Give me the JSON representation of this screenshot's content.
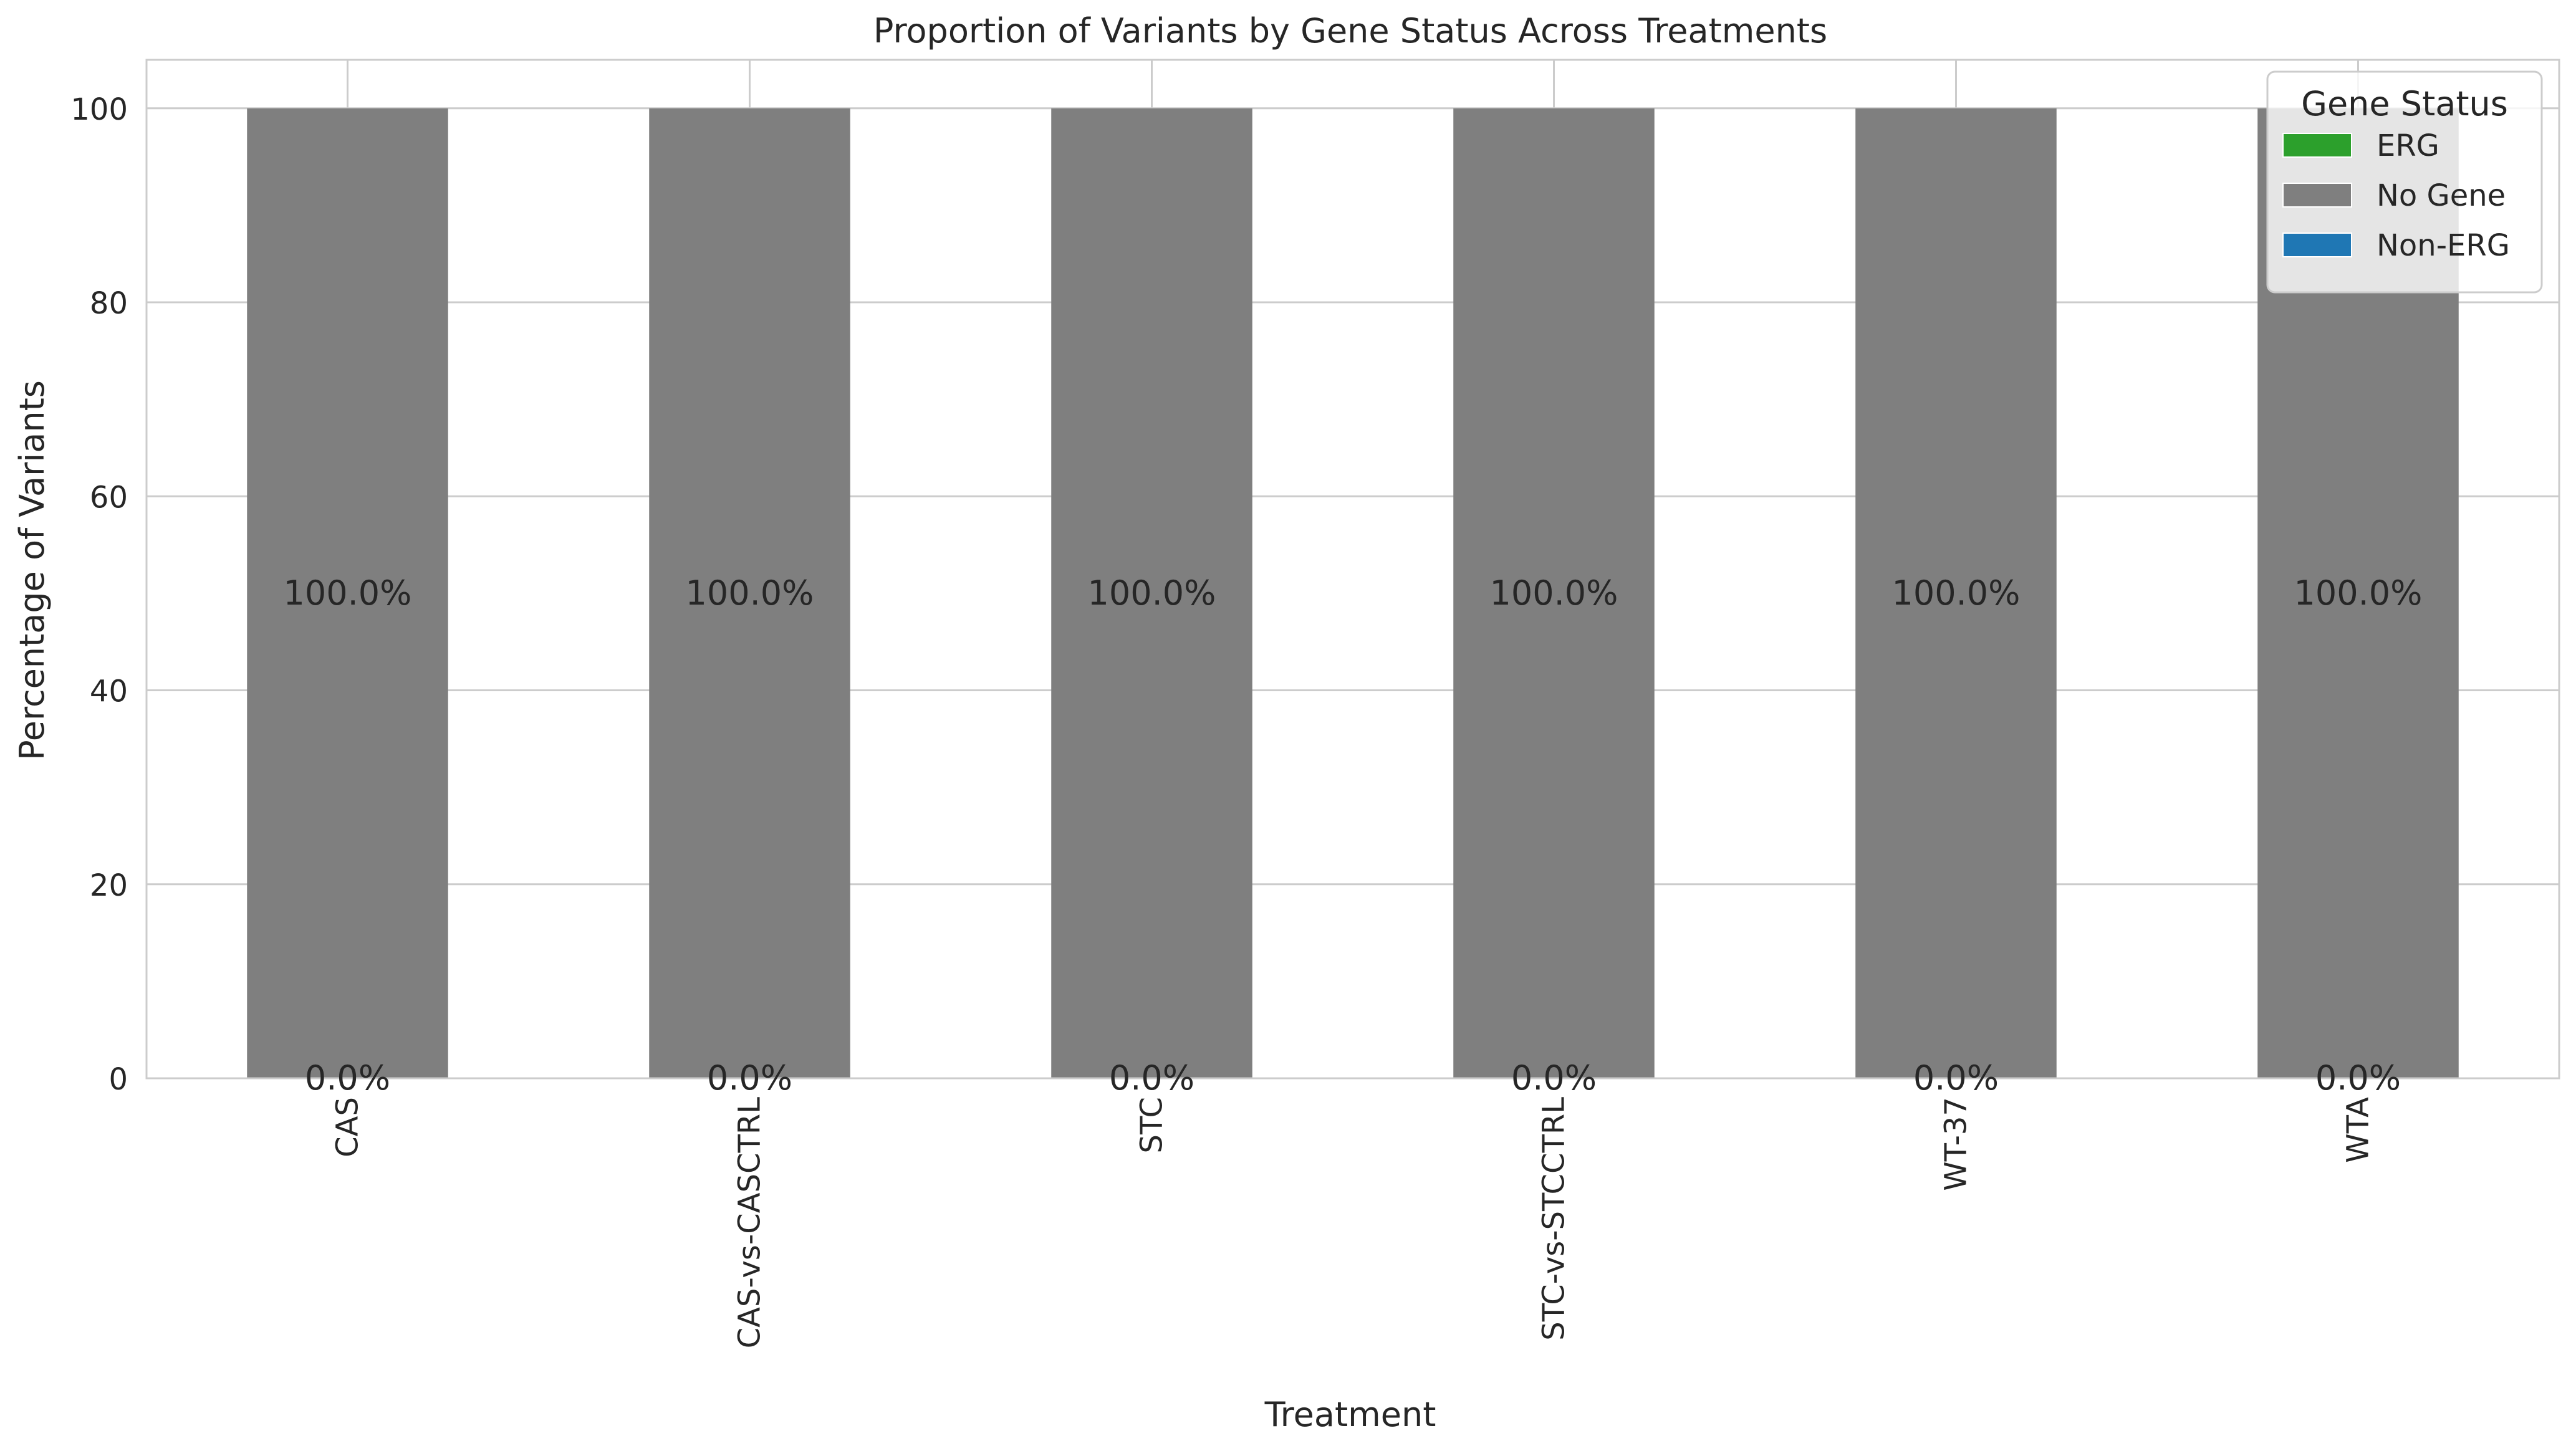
{
  "chart_data": {
    "type": "bar",
    "stacked": true,
    "title": "Proportion of Variants by Gene Status Across Treatments",
    "xlabel": "Treatment",
    "ylabel": "Percentage of Variants",
    "categories": [
      "CAS",
      "CAS-vs-CASCTRL",
      "STC",
      "STC-vs-STCCTRL",
      "WT-37",
      "WTA"
    ],
    "series": [
      {
        "name": "ERG",
        "color": "#2ca02c",
        "values": [
          0,
          0,
          0,
          0,
          0,
          0
        ]
      },
      {
        "name": "No Gene",
        "color": "#7f7f7f",
        "values": [
          100,
          100,
          100,
          100,
          100,
          100
        ]
      },
      {
        "name": "Non-ERG",
        "color": "#1f77b4",
        "values": [
          0,
          0,
          0,
          0,
          0,
          0
        ]
      }
    ],
    "bar_labels": [
      {
        "value_text": "100.0%",
        "series": "No Gene"
      },
      {
        "value_text": "0.0%",
        "series": "ERG / Non-ERG"
      }
    ],
    "yticks": [
      0,
      20,
      40,
      60,
      80,
      100
    ],
    "ylim": [
      0,
      105
    ],
    "grid": true,
    "legend": {
      "title": "Gene Status",
      "placement": "top-right"
    }
  }
}
